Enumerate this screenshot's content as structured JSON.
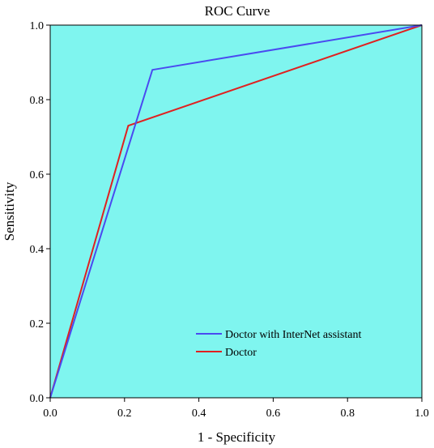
{
  "chart_data": {
    "type": "line",
    "title": "ROC Curve",
    "xlabel": "1 - Specificity",
    "ylabel": "Sensitivity",
    "xlim": [
      0.0,
      1.0
    ],
    "ylim": [
      0.0,
      1.0
    ],
    "xticks": [
      "0.0",
      "0.2",
      "0.4",
      "0.6",
      "0.8",
      "1.0"
    ],
    "yticks": [
      "0.0",
      "0.2",
      "0.4",
      "0.6",
      "0.8",
      "1.0"
    ],
    "grid": false,
    "background_color": "#7ff5ef",
    "legend_position": "bottom-right",
    "series": [
      {
        "name": "Doctor with InterNet assistant",
        "color": "#4a4af0",
        "x": [
          0.0,
          0.275,
          1.0
        ],
        "y": [
          0.0,
          0.88,
          1.0
        ]
      },
      {
        "name": "Doctor",
        "color": "#e02020",
        "x": [
          0.0,
          0.21,
          1.0
        ],
        "y": [
          0.0,
          0.73,
          1.0
        ]
      }
    ]
  }
}
